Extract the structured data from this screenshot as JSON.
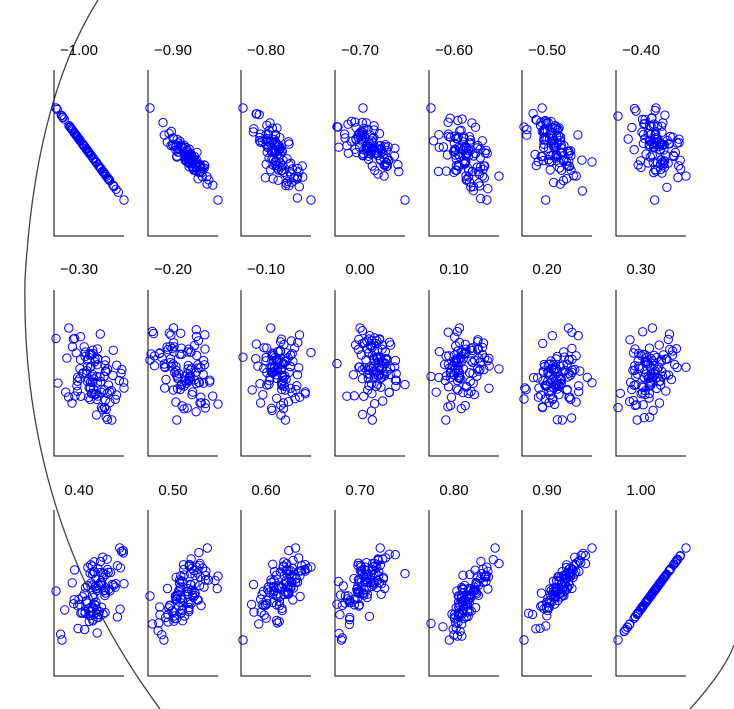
{
  "chart_data": {
    "type": "scatter",
    "title": "",
    "xlabel": "",
    "ylabel": "",
    "grid": false,
    "point_color": "#0000ff",
    "marker": "open-circle",
    "n_points_per_panel": 100,
    "layout": {
      "rows": 3,
      "cols": 7
    },
    "panels": [
      {
        "label": "−1.00",
        "r": -1.0
      },
      {
        "label": "−0.90",
        "r": -0.9
      },
      {
        "label": "−0.80",
        "r": -0.8
      },
      {
        "label": "−0.70",
        "r": -0.7
      },
      {
        "label": "−0.60",
        "r": -0.6
      },
      {
        "label": "−0.50",
        "r": -0.5
      },
      {
        "label": "−0.40",
        "r": -0.4
      },
      {
        "label": "−0.30",
        "r": -0.3
      },
      {
        "label": "−0.20",
        "r": -0.2
      },
      {
        "label": "−0.10",
        "r": -0.1
      },
      {
        "label": "0.00",
        "r": 0.0
      },
      {
        "label": "0.10",
        "r": 0.1
      },
      {
        "label": "0.20",
        "r": 0.2
      },
      {
        "label": "0.30",
        "r": 0.3
      },
      {
        "label": "0.40",
        "r": 0.4
      },
      {
        "label": "0.50",
        "r": 0.5
      },
      {
        "label": "0.60",
        "r": 0.6
      },
      {
        "label": "0.70",
        "r": 0.7
      },
      {
        "label": "0.80",
        "r": 0.8
      },
      {
        "label": "0.90",
        "r": 0.9
      },
      {
        "label": "1.00",
        "r": 1.0
      }
    ]
  }
}
